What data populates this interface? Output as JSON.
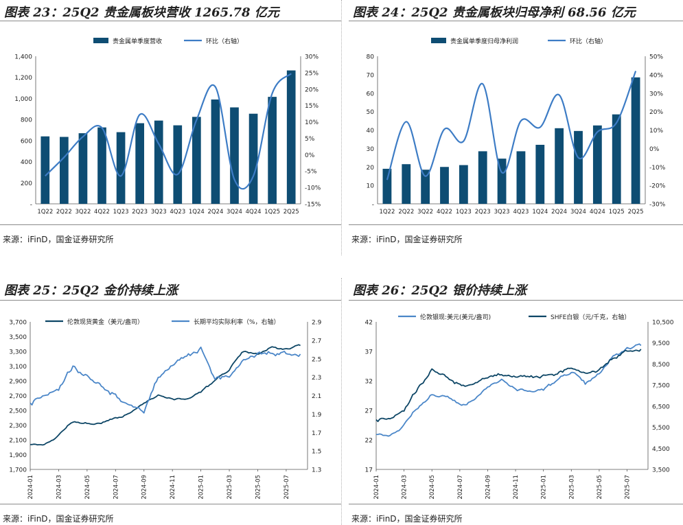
{
  "panels": [
    {
      "title": "图表 23：25Q2 贵金属板块营收 1265.78 亿元",
      "source": "来源：iFinD，国金证券研究所",
      "chart_data": {
        "type": "bar+line",
        "categories": [
          "1Q22",
          "2Q22",
          "3Q22",
          "4Q22",
          "1Q23",
          "2Q23",
          "3Q23",
          "4Q23",
          "1Q24",
          "2Q24",
          "3Q24",
          "4Q24",
          "1Q25",
          "2Q25"
        ],
        "series": [
          {
            "name": "贵金属单季度营收",
            "type": "bar",
            "axis": "left",
            "values": [
              640,
              635,
              670,
              725,
              680,
              765,
              790,
              745,
              825,
              990,
              915,
              855,
              1015,
              1265.78
            ]
          },
          {
            "name": "环比（右轴）",
            "type": "line",
            "axis": "right",
            "values": [
              -6.5,
              -0.8,
              5.5,
              8.2,
              -6.5,
              12.2,
              3.3,
              -6.0,
              10.6,
              20.6,
              -7.6,
              -6.5,
              18.7,
              24.7
            ]
          }
        ],
        "left_axis": {
          "ticks": [
            "-",
            "200",
            "400",
            "600",
            "800",
            "1,000",
            "1,200",
            "1,400"
          ],
          "min": 0,
          "max": 1400
        },
        "right_axis": {
          "ticks": [
            "-15%",
            "-10%",
            "-5%",
            "0%",
            "5%",
            "10%",
            "15%",
            "20%",
            "25%",
            "30%"
          ],
          "min": -15,
          "max": 30
        },
        "legend": "top"
      }
    },
    {
      "title": "图表 24：25Q2 贵金属板块归母净利 68.56 亿元",
      "source": "来源：iFinD，国金证券研究所",
      "chart_data": {
        "type": "bar+line",
        "categories": [
          "1Q22",
          "2Q22",
          "3Q22",
          "4Q22",
          "1Q23",
          "2Q23",
          "3Q23",
          "4Q23",
          "1Q24",
          "2Q24",
          "3Q24",
          "4Q24",
          "1Q25",
          "2Q25"
        ],
        "series": [
          {
            "name": "贵金属单季度归母净利润",
            "type": "bar",
            "axis": "left",
            "values": [
              19,
              21.5,
              18.5,
              20,
              21,
              28.5,
              24.5,
              28.5,
              32,
              41,
              39.5,
              42.5,
              48.5,
              68.56
            ]
          },
          {
            "name": "环比（右轴）",
            "type": "line",
            "axis": "right",
            "values": [
              -17,
              14.5,
              -15,
              10.5,
              4,
              35,
              -13,
              15,
              11.5,
              29,
              -5,
              9,
              14,
              42
            ]
          }
        ],
        "left_axis": {
          "ticks": [
            "-",
            "10",
            "20",
            "30",
            "40",
            "50",
            "60",
            "70",
            "80"
          ],
          "min": 0,
          "max": 80
        },
        "right_axis": {
          "ticks": [
            "-30%",
            "-20%",
            "-10%",
            "0%",
            "10%",
            "20%",
            "30%",
            "40%",
            "50%"
          ],
          "min": -30,
          "max": 50
        },
        "legend": "top"
      }
    },
    {
      "title": "图表 25：25Q2 金价持续上涨",
      "source": "来源：iFinD，国金证券研究所",
      "chart_data": {
        "type": "line",
        "x_ticks": [
          "2024-01",
          "2024-03",
          "2024-05",
          "2024-07",
          "2024-09",
          "2024-11",
          "2025-01",
          "2025-03",
          "2025-05",
          "2025-07"
        ],
        "series": [
          {
            "name": "伦敦现货黄金（美元/盎司）",
            "axis": "left",
            "x": [
              "2024-01",
              "2024-02",
              "2024-03",
              "2024-04",
              "2024-05",
              "2024-06",
              "2024-07",
              "2024-08",
              "2024-09",
              "2024-10",
              "2024-11",
              "2024-12",
              "2025-01",
              "2025-02",
              "2025-03",
              "2025-04",
              "2025-05",
              "2025-06",
              "2025-07",
              "2025-08"
            ],
            "values": [
              2040,
              2025,
              2160,
              2350,
              2340,
              2330,
              2400,
              2450,
              2600,
              2720,
              2650,
              2640,
              2750,
              2900,
              3050,
              3300,
              3250,
              3350,
              3330,
              3380
            ]
          },
          {
            "name": "长期平均实际利率（%，右轴）",
            "axis": "right",
            "x": [
              "2024-01",
              "2024-02",
              "2024-03",
              "2024-04",
              "2024-05",
              "2024-06",
              "2024-07",
              "2024-08",
              "2024-09",
              "2024-10",
              "2024-11",
              "2024-12",
              "2025-01",
              "2025-02",
              "2025-03",
              "2025-04",
              "2025-05",
              "2025-06",
              "2025-07",
              "2025-08"
            ],
            "values": [
              2.0,
              2.1,
              2.2,
              2.4,
              2.3,
              2.2,
              2.1,
              1.95,
              1.9,
              2.3,
              2.4,
              2.5,
              2.6,
              2.3,
              2.3,
              2.5,
              2.55,
              2.6,
              2.55,
              2.55
            ]
          }
        ],
        "left_axis": {
          "ticks": [
            "1,700",
            "1,900",
            "2,100",
            "2,300",
            "2,500",
            "2,700",
            "2,900",
            "3,100",
            "3,300",
            "3,500",
            "3,700"
          ],
          "min": 1700,
          "max": 3700
        },
        "right_axis": {
          "ticks": [
            "1.3",
            "1.5",
            "1.7",
            "1.9",
            "2.1",
            "2.3",
            "2.5",
            "2.7",
            "2.9"
          ],
          "min": 1.3,
          "max": 2.9
        },
        "legend": "top"
      }
    },
    {
      "title": "图表 26：25Q2 银价持续上涨",
      "source": "来源：iFinD，国金证券研究所",
      "chart_data": {
        "type": "line",
        "x_ticks": [
          "2024-01",
          "2024-03",
          "2024-05",
          "2024-07",
          "2024-09",
          "2024-11",
          "2025-01",
          "2025-03",
          "2025-05",
          "2025-07"
        ],
        "series": [
          {
            "name": "伦敦银现:美元(美元/盎司)",
            "axis": "left",
            "x": [
              "2024-01",
              "2024-02",
              "2024-03",
              "2024-04",
              "2024-05",
              "2024-06",
              "2024-07",
              "2024-08",
              "2024-09",
              "2024-10",
              "2024-11",
              "2024-12",
              "2025-01",
              "2025-02",
              "2025-03",
              "2025-04",
              "2025-05",
              "2025-06",
              "2025-07",
              "2025-08"
            ],
            "values": [
              23,
              22.5,
              24.5,
              27.5,
              30,
              29.5,
              28,
              28.5,
              31,
              32.5,
              30.5,
              30,
              30.5,
              32,
              33.5,
              31.5,
              33,
              36,
              37.5,
              38
            ]
          },
          {
            "name": "SHFE白银（元/千克，右轴）",
            "axis": "right",
            "x": [
              "2024-01",
              "2024-02",
              "2024-03",
              "2024-04",
              "2024-05",
              "2024-06",
              "2024-07",
              "2024-08",
              "2024-09",
              "2024-10",
              "2024-11",
              "2024-12",
              "2025-01",
              "2025-02",
              "2025-03",
              "2025-04",
              "2025-05",
              "2025-06",
              "2025-07",
              "2025-08"
            ],
            "values": [
              5800,
              5900,
              6400,
              7300,
              8200,
              7900,
              7500,
              7400,
              7800,
              8000,
              7800,
              7800,
              7900,
              8100,
              8300,
              8100,
              8200,
              8900,
              9100,
              9200
            ]
          }
        ],
        "left_axis": {
          "ticks": [
            "17",
            "22",
            "27",
            "32",
            "37",
            "42"
          ],
          "min": 17,
          "max": 42
        },
        "right_axis": {
          "ticks": [
            "3,500",
            "4,500",
            "5,500",
            "6,500",
            "7,500",
            "8,500",
            "9,500",
            "10,500"
          ],
          "min": 3500,
          "max": 10500
        },
        "legend": "top"
      }
    }
  ],
  "colors": {
    "bar": "#0e4d73",
    "line": "#3d7cc5",
    "dark_line": "#0c4565",
    "light_line": "#4a86c8"
  }
}
